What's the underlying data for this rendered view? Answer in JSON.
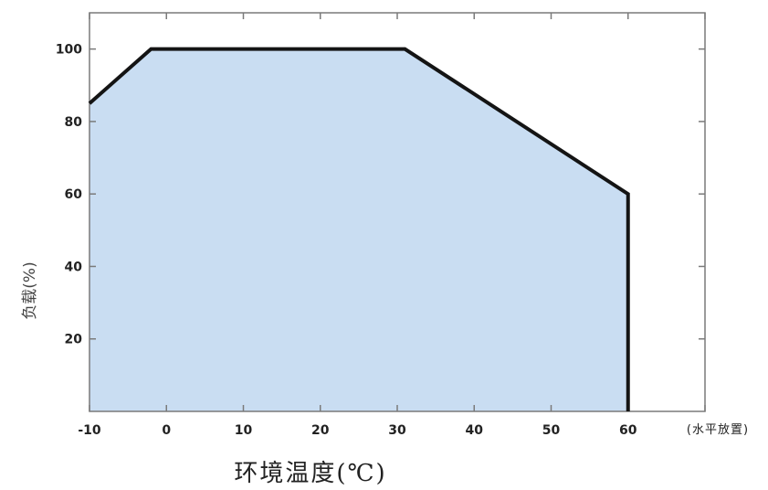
{
  "chart_data": {
    "type": "area",
    "x": [
      -10,
      -2,
      31,
      60,
      60
    ],
    "y": [
      85,
      100,
      100,
      60,
      0
    ],
    "xlim": [
      -10,
      70
    ],
    "ylim": [
      0,
      110
    ],
    "xticks": [
      -10,
      0,
      10,
      20,
      30,
      40,
      50,
      60,
      70
    ],
    "xtick_labels": [
      "-10",
      "0",
      "10",
      "20",
      "30",
      "40",
      "50",
      "60",
      ""
    ],
    "yticks": [
      20,
      40,
      60,
      80,
      100
    ],
    "ytick_labels": [
      "20",
      "40",
      "60",
      "80",
      "100"
    ],
    "xlabel": "环境温度(℃)",
    "ylabel": "负载(%)",
    "annotation": "(水平放置)",
    "grid": false,
    "fill_color": "#c9ddf2",
    "line_color": "#141414",
    "axis_color": "#7a7a7a"
  }
}
